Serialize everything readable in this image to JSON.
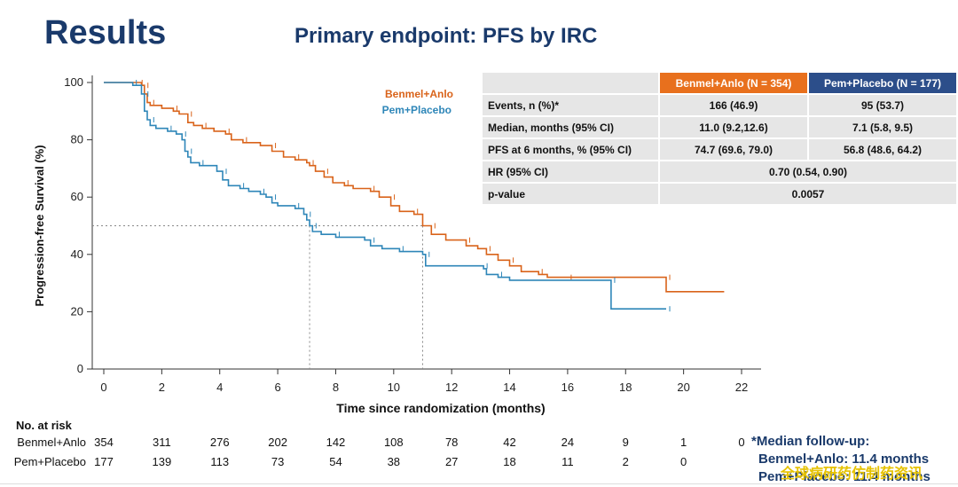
{
  "header": {
    "title": "Results",
    "subtitle": "Primary endpoint: PFS by IRC"
  },
  "legend": {
    "series1": "Benmel+Anlo",
    "series2": "Pem+Placebo"
  },
  "table": {
    "head1": "Benmel+Anlo (N  = 354)",
    "head2": "Pem+Placebo (N = 177)",
    "rows": [
      {
        "label": "Events, n (%)*",
        "v1": "166 (46.9)",
        "v2": "95 (53.7)"
      },
      {
        "label": "Median, months (95% CI)",
        "v1": "11.0 (9.2,12.6)",
        "v2": "7.1 (5.8, 9.5)"
      },
      {
        "label": "PFS at 6 months, % (95% CI)",
        "v1": "74.7 (69.6, 79.0)",
        "v2": "56.8 (48.6, 64.2)"
      },
      {
        "label": "HR (95% CI)",
        "v": "0.70 (0.54, 0.90)"
      },
      {
        "label": "p-value",
        "v": "0.0057"
      }
    ]
  },
  "risk": {
    "title": "No. at risk",
    "times": [
      0,
      2,
      4,
      6,
      8,
      10,
      12,
      14,
      16,
      18,
      20,
      22
    ],
    "rows": [
      {
        "name": "Benmel+Anlo",
        "values": [
          "354",
          "311",
          "276",
          "202",
          "142",
          "108",
          "78",
          "42",
          "24",
          "9",
          "1",
          "0"
        ]
      },
      {
        "name": "Pem+Placebo",
        "values": [
          "177",
          "139",
          "113",
          "73",
          "54",
          "38",
          "27",
          "18",
          "11",
          "2",
          "0",
          ""
        ]
      }
    ]
  },
  "footnote": {
    "line1": "*Median follow-up:",
    "line2": "Benmel+Anlo: 11.4 months",
    "line3": "Pem+Placebo: 11.4 months"
  },
  "watermark": "全球病研药仿制药资讯",
  "chart_data": {
    "type": "line",
    "xlabel": "Time since randomization (months)",
    "ylabel": "Progression-free Survival (%)",
    "xlim": [
      0,
      22
    ],
    "ylim": [
      0,
      100
    ],
    "xticks": [
      0,
      2,
      4,
      6,
      8,
      10,
      12,
      14,
      16,
      18,
      20,
      22
    ],
    "yticks": [
      0,
      20,
      40,
      60,
      80,
      100
    ],
    "median_reference": {
      "y": 50,
      "x_values": [
        7.1,
        11.0
      ]
    },
    "series": [
      {
        "name": "Benmel+Anlo",
        "color": "#d9631a",
        "step_points": [
          [
            0,
            100
          ],
          [
            1.2,
            100
          ],
          [
            1.3,
            99
          ],
          [
            1.4,
            96
          ],
          [
            1.5,
            93
          ],
          [
            1.6,
            92
          ],
          [
            2.0,
            91
          ],
          [
            2.4,
            90
          ],
          [
            2.6,
            89
          ],
          [
            2.9,
            86
          ],
          [
            3.1,
            85
          ],
          [
            3.4,
            84
          ],
          [
            3.8,
            83
          ],
          [
            4.2,
            82
          ],
          [
            4.4,
            80
          ],
          [
            4.8,
            79
          ],
          [
            5.4,
            78
          ],
          [
            5.8,
            76
          ],
          [
            6.2,
            74
          ],
          [
            6.6,
            73
          ],
          [
            7.0,
            72
          ],
          [
            7.1,
            71
          ],
          [
            7.3,
            69
          ],
          [
            7.6,
            67
          ],
          [
            7.9,
            65
          ],
          [
            8.3,
            64
          ],
          [
            8.6,
            63
          ],
          [
            9.2,
            62
          ],
          [
            9.5,
            60
          ],
          [
            9.9,
            57
          ],
          [
            10.2,
            55
          ],
          [
            10.7,
            54
          ],
          [
            11.0,
            50
          ],
          [
            11.3,
            47
          ],
          [
            11.8,
            45
          ],
          [
            12.5,
            43
          ],
          [
            12.9,
            42
          ],
          [
            13.2,
            40
          ],
          [
            13.6,
            38
          ],
          [
            14.0,
            36
          ],
          [
            14.4,
            34
          ],
          [
            15.0,
            33
          ],
          [
            15.3,
            32
          ],
          [
            16.0,
            32
          ],
          [
            19.4,
            32
          ],
          [
            19.4,
            27
          ],
          [
            21.4,
            27
          ]
        ]
      },
      {
        "name": "Pem+Placebo",
        "color": "#2e86b8",
        "step_points": [
          [
            0,
            100
          ],
          [
            1.0,
            99
          ],
          [
            1.3,
            96
          ],
          [
            1.4,
            90
          ],
          [
            1.5,
            87
          ],
          [
            1.6,
            85
          ],
          [
            1.8,
            84
          ],
          [
            2.2,
            83
          ],
          [
            2.5,
            82
          ],
          [
            2.7,
            80
          ],
          [
            2.8,
            76
          ],
          [
            2.9,
            74
          ],
          [
            3.0,
            72
          ],
          [
            3.3,
            71
          ],
          [
            3.9,
            69
          ],
          [
            4.1,
            66
          ],
          [
            4.3,
            64
          ],
          [
            4.7,
            63
          ],
          [
            5.0,
            62
          ],
          [
            5.4,
            61
          ],
          [
            5.6,
            60
          ],
          [
            5.8,
            58
          ],
          [
            6.0,
            57
          ],
          [
            6.6,
            56
          ],
          [
            6.9,
            54
          ],
          [
            7.0,
            52
          ],
          [
            7.1,
            50
          ],
          [
            7.2,
            48
          ],
          [
            7.5,
            47
          ],
          [
            8.0,
            46
          ],
          [
            9.0,
            45
          ],
          [
            9.2,
            43
          ],
          [
            9.6,
            42
          ],
          [
            10.2,
            41
          ],
          [
            11.0,
            40
          ],
          [
            11.1,
            36
          ],
          [
            12.5,
            36
          ],
          [
            13.1,
            35
          ],
          [
            13.2,
            33
          ],
          [
            13.6,
            32
          ],
          [
            14.0,
            31
          ],
          [
            17.5,
            31
          ],
          [
            17.5,
            21
          ],
          [
            19.4,
            21
          ]
        ]
      }
    ]
  }
}
